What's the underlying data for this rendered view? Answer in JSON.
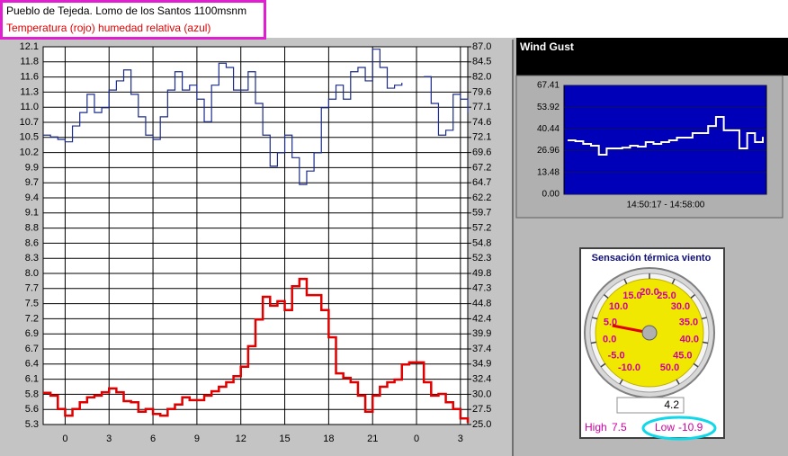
{
  "chart_data": [
    {
      "type": "line",
      "title": "Pueblo de Tejeda. Lomo de los Santos 1100msnm",
      "subtitle": "Temperatura (rojo)  humedad relativa (azul)",
      "grid": true,
      "x": [
        -1.5,
        -1,
        -0.5,
        0,
        0.5,
        1,
        1.5,
        2,
        2.5,
        3,
        3.5,
        4,
        4.5,
        5,
        5.5,
        6,
        6.5,
        7,
        7.5,
        8,
        8.5,
        9,
        9.5,
        10,
        10.5,
        11,
        11.5,
        12,
        12.5,
        13,
        13.5,
        14,
        14.5,
        15,
        15.5,
        16,
        16.5,
        17,
        17.5,
        18,
        18.5,
        19,
        19.5,
        20,
        20.5,
        21,
        21.5,
        22,
        22.5,
        23,
        23.5,
        24,
        24.5,
        25,
        25.5,
        26,
        26.5,
        27,
        27.5
      ],
      "xlim": [
        -1.5,
        27.5
      ],
      "xticks": [
        0,
        3,
        6,
        9,
        12,
        15,
        18,
        21,
        {
          "value": 24,
          "label": "0"
        },
        {
          "value": 27,
          "label": "3"
        }
      ],
      "ylim": [
        5.3,
        12.1
      ],
      "yticks": [
        {
          "value": 5.3,
          "label": "5.3"
        },
        {
          "value": 5.572,
          "label": "5.6"
        },
        {
          "value": 5.844,
          "label": "5.8"
        },
        {
          "value": 6.116,
          "label": "6.1"
        },
        {
          "value": 6.388,
          "label": "6.4"
        },
        {
          "value": 6.66,
          "label": "6.7"
        },
        {
          "value": 6.932,
          "label": "6.9"
        },
        {
          "value": 7.204,
          "label": "7.2"
        },
        {
          "value": 7.476,
          "label": "7.5"
        },
        {
          "value": 7.748,
          "label": "7.7"
        },
        {
          "value": 8.02,
          "label": "8.0"
        },
        {
          "value": 8.292,
          "label": "8.3"
        },
        {
          "value": 8.564,
          "label": "8.6"
        },
        {
          "value": 8.836,
          "label": "8.8"
        },
        {
          "value": 9.108,
          "label": "9.1"
        },
        {
          "value": 9.38,
          "label": "9.4"
        },
        {
          "value": 9.652,
          "label": "9.7"
        },
        {
          "value": 9.924,
          "label": "9.9"
        },
        {
          "value": 10.196,
          "label": "10.2"
        },
        {
          "value": 10.468,
          "label": "10.5"
        },
        {
          "value": 10.74,
          "label": "10.7"
        },
        {
          "value": 11.012,
          "label": "11.0"
        },
        {
          "value": 11.284,
          "label": "11.3"
        },
        {
          "value": 11.556,
          "label": "11.6"
        },
        {
          "value": 11.828,
          "label": "11.8"
        },
        {
          "value": 12.1,
          "label": "12.1"
        }
      ],
      "y2lim": [
        25,
        87
      ],
      "y2ticks": [
        {
          "value": 25,
          "label": "25.0"
        },
        {
          "value": 27.48,
          "label": "27.5"
        },
        {
          "value": 29.96,
          "label": "30.0"
        },
        {
          "value": 32.44,
          "label": "32.4"
        },
        {
          "value": 34.92,
          "label": "34.9"
        },
        {
          "value": 37.4,
          "label": "37.4"
        },
        {
          "value": 39.88,
          "label": "39.9"
        },
        {
          "value": 42.36,
          "label": "42.4"
        },
        {
          "value": 44.84,
          "label": "44.8"
        },
        {
          "value": 47.32,
          "label": "47.3"
        },
        {
          "value": 49.8,
          "label": "49.8"
        },
        {
          "value": 52.28,
          "label": "52.3"
        },
        {
          "value": 54.76,
          "label": "54.8"
        },
        {
          "value": 57.24,
          "label": "57.2"
        },
        {
          "value": 59.72,
          "label": "59.7"
        },
        {
          "value": 62.2,
          "label": "62.2"
        },
        {
          "value": 64.68,
          "label": "64.7"
        },
        {
          "value": 67.16,
          "label": "67.2"
        },
        {
          "value": 69.64,
          "label": "69.6"
        },
        {
          "value": 72.12,
          "label": "72.1"
        },
        {
          "value": 74.6,
          "label": "74.6"
        },
        {
          "value": 77.08,
          "label": "77.1"
        },
        {
          "value": 79.56,
          "label": "79.6"
        },
        {
          "value": 82.04,
          "label": "82.0"
        },
        {
          "value": 84.52,
          "label": "84.5"
        },
        {
          "value": 87,
          "label": "87.0"
        }
      ],
      "series": [
        {
          "color": "#e00000",
          "values": [
            5.87,
            5.82,
            5.58,
            5.46,
            5.58,
            5.7,
            5.79,
            5.82,
            5.88,
            5.95,
            5.88,
            5.72,
            5.7,
            5.53,
            5.58,
            5.49,
            5.46,
            5.58,
            5.66,
            5.79,
            5.74,
            5.74,
            5.82,
            5.9,
            5.98,
            6.06,
            6.17,
            6.34,
            6.71,
            7.19,
            7.6,
            7.44,
            7.52,
            7.36,
            7.79,
            7.92,
            7.63,
            7.63,
            7.36,
            6.87,
            6.22,
            6.14,
            6.06,
            5.82,
            5.53,
            5.82,
            5.98,
            6.06,
            6.11,
            6.38,
            6.42,
            6.42,
            6.06,
            5.82,
            5.85,
            5.7,
            5.58,
            5.41,
            5.33
          ]
        },
        {
          "color": "#1c2c8c",
          "axis": "y2",
          "values": [
            72.5,
            72.2,
            71.8,
            71.4,
            74.0,
            76.2,
            79.2,
            76.2,
            77.0,
            79.9,
            81.4,
            83.2,
            79.2,
            75.5,
            72.5,
            71.8,
            75.5,
            79.9,
            82.9,
            79.9,
            80.7,
            78.4,
            74.7,
            80.7,
            84.3,
            83.6,
            79.9,
            79.9,
            82.9,
            77.7,
            72.5,
            67.4,
            69.6,
            72.5,
            68.8,
            64.4,
            66.6,
            69.6,
            77.0,
            78.4,
            80.7,
            78.4,
            82.9,
            83.6,
            81.4,
            86.6,
            83.6,
            80.2,
            80.7,
            81.1,
            null,
            null,
            82.1,
            77.7,
            72.5,
            73.3,
            79.2,
            78.4,
            76.2
          ]
        }
      ]
    },
    {
      "type": "line",
      "title": "Wind Gust",
      "xlabel": "14:50:17  -  14:58:00",
      "color": "#ffffff",
      "grid": true,
      "ylim": [
        0,
        67.41
      ],
      "yticks": [
        {
          "value": 0,
          "label": "0.00"
        },
        13.48,
        26.96,
        40.44,
        53.92,
        67.41
      ],
      "values": [
        33.4,
        32.9,
        31.2,
        30.1,
        24.5,
        28.4,
        28.4,
        28.9,
        30.1,
        29.5,
        32.3,
        31.2,
        32.3,
        33.4,
        35.1,
        35.1,
        37.9,
        37.9,
        42.3,
        47.9,
        39.6,
        39.6,
        28.4,
        37.9,
        32.3,
        35.6
      ]
    },
    {
      "type": "gauge",
      "title": "Sensación térmica viento",
      "value": 4.2,
      "ticks": [
        {
          "value": -10,
          "label": "-10.0"
        },
        {
          "value": -5,
          "label": "-5.0"
        },
        {
          "value": 0,
          "label": "0.0"
        },
        {
          "value": 5,
          "label": "5.0"
        },
        {
          "value": 10,
          "label": "10.0"
        },
        {
          "value": 15,
          "label": "15.0"
        },
        {
          "value": 20,
          "label": "20.0"
        },
        {
          "value": 25,
          "label": "25.0"
        },
        {
          "value": 30,
          "label": "30.0"
        },
        {
          "value": 35,
          "label": "35.0"
        },
        {
          "value": 40,
          "label": "40.0"
        },
        {
          "value": 45,
          "label": "45.0"
        },
        {
          "value": 50,
          "label": "50.0"
        }
      ],
      "high": {
        "label": "High",
        "value": 7.5
      },
      "low": {
        "label": "Low",
        "value": -10.9
      }
    }
  ]
}
